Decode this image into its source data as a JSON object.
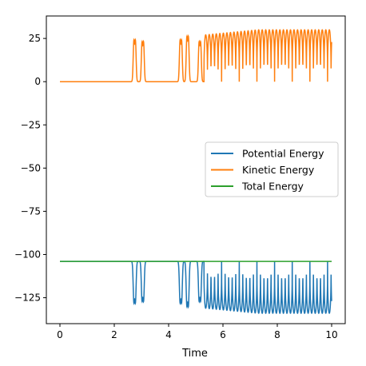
{
  "chart_data": {
    "type": "line",
    "title": "",
    "xlabel": "Time",
    "ylabel": "",
    "xlim": [
      -0.5,
      10.5
    ],
    "ylim": [
      -140,
      38
    ],
    "xticks": [
      0,
      2,
      4,
      6,
      8,
      10
    ],
    "yticks": [
      25,
      0,
      -25,
      -50,
      -75,
      -100,
      -125
    ],
    "grid": false,
    "legend_position": "center-right",
    "series": [
      {
        "name": "Potential Energy",
        "color": "#1f77b4",
        "baseline": -104,
        "trough": -134,
        "description_points": [
          [
            0,
            -104
          ],
          [
            2.5,
            -104
          ],
          [
            2.75,
            -128
          ],
          [
            2.85,
            -104
          ],
          [
            3.05,
            -127
          ],
          [
            3.15,
            -104
          ],
          [
            4.3,
            -104
          ],
          [
            4.45,
            -128
          ],
          [
            4.55,
            -104
          ],
          [
            4.7,
            -127
          ],
          [
            4.8,
            -104
          ],
          [
            5.15,
            -126
          ],
          [
            5.35,
            -133
          ],
          [
            10,
            -134
          ]
        ]
      },
      {
        "name": "Kinetic Energy",
        "color": "#ff7f0e",
        "baseline": 0,
        "peak": 30,
        "description_points": [
          [
            0,
            0
          ],
          [
            2.5,
            0
          ],
          [
            2.75,
            24
          ],
          [
            2.85,
            0
          ],
          [
            3.05,
            23
          ],
          [
            3.15,
            0
          ],
          [
            4.3,
            0
          ],
          [
            4.45,
            24
          ],
          [
            4.55,
            0
          ],
          [
            4.7,
            26
          ],
          [
            4.8,
            0
          ],
          [
            5.15,
            23
          ],
          [
            5.35,
            29
          ],
          [
            10,
            30
          ]
        ]
      },
      {
        "name": "Total Energy",
        "color": "#2ca02c",
        "constant": -104
      }
    ]
  }
}
